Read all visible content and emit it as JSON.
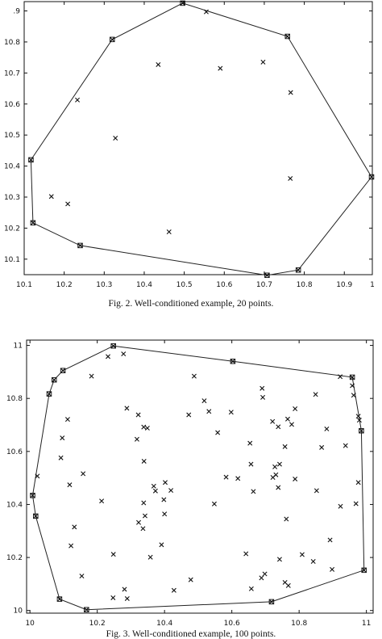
{
  "figures": [
    {
      "caption": "Fig. 2. Well-conditioned example, 20 points.",
      "chart_data": {
        "type": "scatter",
        "title": "",
        "xlabel": "",
        "ylabel": "",
        "xlim": [
          10.1,
          10.97
        ],
        "ylim": [
          10.05,
          10.93
        ],
        "xticks": [
          "10.1",
          "10.2",
          "10.3",
          "10.4",
          "10.5",
          "10.6",
          "10.7",
          "10.8",
          "10.9",
          "1"
        ],
        "yticks": [
          "10.1",
          "10.2",
          "10.3",
          "10.4",
          "10.5",
          "10.6",
          "10.7",
          "10.8",
          ".9"
        ],
        "hull": [
          [
            10.496,
            10.925
          ],
          [
            10.758,
            10.818
          ],
          [
            10.968,
            10.365
          ],
          [
            10.785,
            10.065
          ],
          [
            10.707,
            10.048
          ],
          [
            10.24,
            10.144
          ],
          [
            10.122,
            10.217
          ],
          [
            10.117,
            10.42
          ],
          [
            10.32,
            10.808
          ]
        ],
        "points": [
          [
            10.555,
            10.897
          ],
          [
            10.435,
            10.727
          ],
          [
            10.59,
            10.715
          ],
          [
            10.697,
            10.735
          ],
          [
            10.233,
            10.613
          ],
          [
            10.766,
            10.637
          ],
          [
            10.328,
            10.49
          ],
          [
            10.765,
            10.36
          ],
          [
            10.168,
            10.302
          ],
          [
            10.209,
            10.278
          ],
          [
            10.462,
            10.188
          ]
        ]
      }
    },
    {
      "caption": "Fig. 3. Well-conditioned example, 100 points.",
      "chart_data": {
        "type": "scatter",
        "title": "",
        "xlabel": "",
        "ylabel": "",
        "xlim": [
          9.99,
          11.02
        ],
        "ylim": [
          9.99,
          11.02
        ],
        "xticks": [
          "10",
          "10.2",
          "10.4",
          "10.6",
          "10.8",
          "11"
        ],
        "yticks": [
          "10",
          "10.2",
          "10.4",
          "10.6",
          "10.8",
          "11"
        ],
        "hull": [
          [
            10.248,
            10.998
          ],
          [
            10.603,
            10.94
          ],
          [
            10.958,
            10.88
          ],
          [
            10.985,
            10.678
          ],
          [
            10.993,
            10.152
          ],
          [
            10.718,
            10.033
          ],
          [
            10.168,
            10.003
          ],
          [
            10.088,
            10.043
          ],
          [
            10.017,
            10.356
          ],
          [
            10.008,
            10.434
          ],
          [
            10.057,
            10.817
          ],
          [
            10.072,
            10.87
          ],
          [
            10.098,
            10.905
          ]
        ],
        "points": [
          [
            10.278,
            10.968
          ],
          [
            10.232,
            10.958
          ],
          [
            10.183,
            10.884
          ],
          [
            10.488,
            10.884
          ],
          [
            10.112,
            10.721
          ],
          [
            10.096,
            10.651
          ],
          [
            10.092,
            10.576
          ],
          [
            10.118,
            10.474
          ],
          [
            10.158,
            10.516
          ],
          [
            10.022,
            10.507
          ],
          [
            10.288,
            10.763
          ],
          [
            10.322,
            10.738
          ],
          [
            10.318,
            10.646
          ],
          [
            10.338,
            10.692
          ],
          [
            10.349,
            10.688
          ],
          [
            10.339,
            10.563
          ],
          [
            10.368,
            10.469
          ],
          [
            10.373,
            10.451
          ],
          [
            10.402,
            10.483
          ],
          [
            10.419,
            10.453
          ],
          [
            10.338,
            10.406
          ],
          [
            10.342,
            10.357
          ],
          [
            10.323,
            10.332
          ],
          [
            10.398,
            10.418
          ],
          [
            10.4,
            10.364
          ],
          [
            10.391,
            10.248
          ],
          [
            10.336,
            10.309
          ],
          [
            10.213,
            10.413
          ],
          [
            10.132,
            10.315
          ],
          [
            10.122,
            10.244
          ],
          [
            10.154,
            10.13
          ],
          [
            10.248,
            10.212
          ],
          [
            10.281,
            10.08
          ],
          [
            10.289,
            10.045
          ],
          [
            10.247,
            10.048
          ],
          [
            10.428,
            10.076
          ],
          [
            10.478,
            10.116
          ],
          [
            10.358,
            10.201
          ],
          [
            10.518,
            10.791
          ],
          [
            10.532,
            10.751
          ],
          [
            10.472,
            10.738
          ],
          [
            10.558,
            10.671
          ],
          [
            10.598,
            10.748
          ],
          [
            10.583,
            10.503
          ],
          [
            10.618,
            10.498
          ],
          [
            10.654,
            10.631
          ],
          [
            10.657,
            10.552
          ],
          [
            10.664,
            10.449
          ],
          [
            10.548,
            10.402
          ],
          [
            10.642,
            10.214
          ],
          [
            10.69,
            10.838
          ],
          [
            10.692,
            10.804
          ],
          [
            10.721,
            10.713
          ],
          [
            10.738,
            10.693
          ],
          [
            10.778,
            10.702
          ],
          [
            10.766,
            10.722
          ],
          [
            10.788,
            10.761
          ],
          [
            10.758,
            10.618
          ],
          [
            10.742,
            10.552
          ],
          [
            10.728,
            10.542
          ],
          [
            10.731,
            10.512
          ],
          [
            10.722,
            10.502
          ],
          [
            10.738,
            10.464
          ],
          [
            10.788,
            10.496
          ],
          [
            10.762,
            10.345
          ],
          [
            10.809,
            10.211
          ],
          [
            10.849,
            10.815
          ],
          [
            10.867,
            10.615
          ],
          [
            10.882,
            10.685
          ],
          [
            10.852,
            10.452
          ],
          [
            10.892,
            10.266
          ],
          [
            10.898,
            10.155
          ],
          [
            10.922,
            10.882
          ],
          [
            10.938,
            10.622
          ],
          [
            10.958,
            10.848
          ],
          [
            10.962,
            10.812
          ],
          [
            10.976,
            10.733
          ],
          [
            10.979,
            10.718
          ],
          [
            10.976,
            10.483
          ],
          [
            10.969,
            10.403
          ],
          [
            10.923,
            10.393
          ],
          [
            10.742,
            10.193
          ],
          [
            10.842,
            10.185
          ],
          [
            10.758,
            10.106
          ],
          [
            10.768,
            10.094
          ],
          [
            10.688,
            10.123
          ],
          [
            10.658,
            10.082
          ],
          [
            10.698,
            10.138
          ]
        ]
      }
    }
  ]
}
